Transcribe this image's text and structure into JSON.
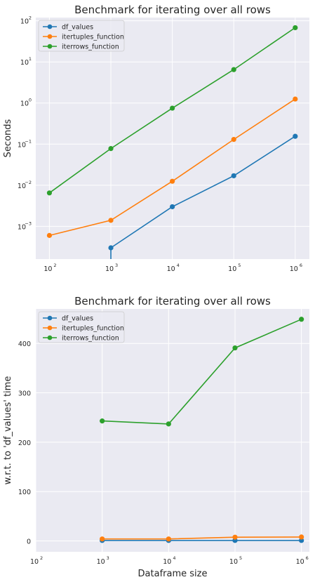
{
  "chart_data": [
    {
      "type": "line",
      "title": "Benchmark for iterating over all rows",
      "xlabel": "",
      "ylabel": "Seconds",
      "xscale": "log",
      "yscale": "log",
      "x_ticks": [
        {
          "base": "10",
          "exp": "2",
          "value": 100
        },
        {
          "base": "10",
          "exp": "3",
          "value": 1000
        },
        {
          "base": "10",
          "exp": "4",
          "value": 10000
        },
        {
          "base": "10",
          "exp": "5",
          "value": 100000
        },
        {
          "base": "10",
          "exp": "6",
          "value": 1000000
        }
      ],
      "y_ticks": [
        {
          "base": "10",
          "exp": "−3",
          "value": 0.001
        },
        {
          "base": "10",
          "exp": "−2",
          "value": 0.01
        },
        {
          "base": "10",
          "exp": "−1",
          "value": 0.1
        },
        {
          "base": "10",
          "exp": "0",
          "value": 1
        },
        {
          "base": "10",
          "exp": "1",
          "value": 10
        },
        {
          "base": "10",
          "exp": "2",
          "value": 100
        }
      ],
      "grid": true,
      "legend_position": "upper-left",
      "series": [
        {
          "name": "df_values",
          "color": "#1f77b4",
          "x": [
            100,
            1000,
            10000,
            100000,
            1000000
          ],
          "y": [
            null,
            0.0003,
            0.003,
            0.017,
            0.155
          ]
        },
        {
          "name": "itertuples_function",
          "color": "#ff7f0e",
          "x": [
            100,
            1000,
            10000,
            100000,
            1000000
          ],
          "y": [
            0.0006,
            0.0014,
            0.0125,
            0.13,
            1.25
          ]
        },
        {
          "name": "iterrows_function",
          "color": "#2ca02c",
          "x": [
            100,
            1000,
            10000,
            100000,
            1000000
          ],
          "y": [
            0.0065,
            0.078,
            0.75,
            6.5,
            68
          ]
        }
      ]
    },
    {
      "type": "line",
      "title": "Benchmark for iterating over all rows",
      "xlabel": "Dataframe size",
      "ylabel": "w.r.t. to 'df_values' time",
      "xscale": "log",
      "yscale": "linear",
      "x_ticks": [
        {
          "base": "10",
          "exp": "2",
          "value": 100
        },
        {
          "base": "10",
          "exp": "3",
          "value": 1000
        },
        {
          "base": "10",
          "exp": "4",
          "value": 10000
        },
        {
          "base": "10",
          "exp": "5",
          "value": 100000
        },
        {
          "base": "10",
          "exp": "6",
          "value": 1000000
        }
      ],
      "y_ticks": [
        {
          "label": "0",
          "value": 0
        },
        {
          "label": "100",
          "value": 100
        },
        {
          "label": "200",
          "value": 200
        },
        {
          "label": "300",
          "value": 300
        },
        {
          "label": "400",
          "value": 400
        }
      ],
      "grid": true,
      "legend_position": "upper-left",
      "series": [
        {
          "name": "df_values",
          "color": "#1f77b4",
          "x": [
            1000,
            10000,
            100000,
            1000000
          ],
          "y": [
            1,
            1,
            1,
            1
          ]
        },
        {
          "name": "itertuples_function",
          "color": "#ff7f0e",
          "x": [
            1000,
            10000,
            100000,
            1000000
          ],
          "y": [
            4,
            4,
            7.6,
            8
          ]
        },
        {
          "name": "iterrows_function",
          "color": "#2ca02c",
          "x": [
            1000,
            10000,
            100000,
            1000000
          ],
          "y": [
            243,
            237,
            391,
            449
          ]
        }
      ]
    }
  ]
}
